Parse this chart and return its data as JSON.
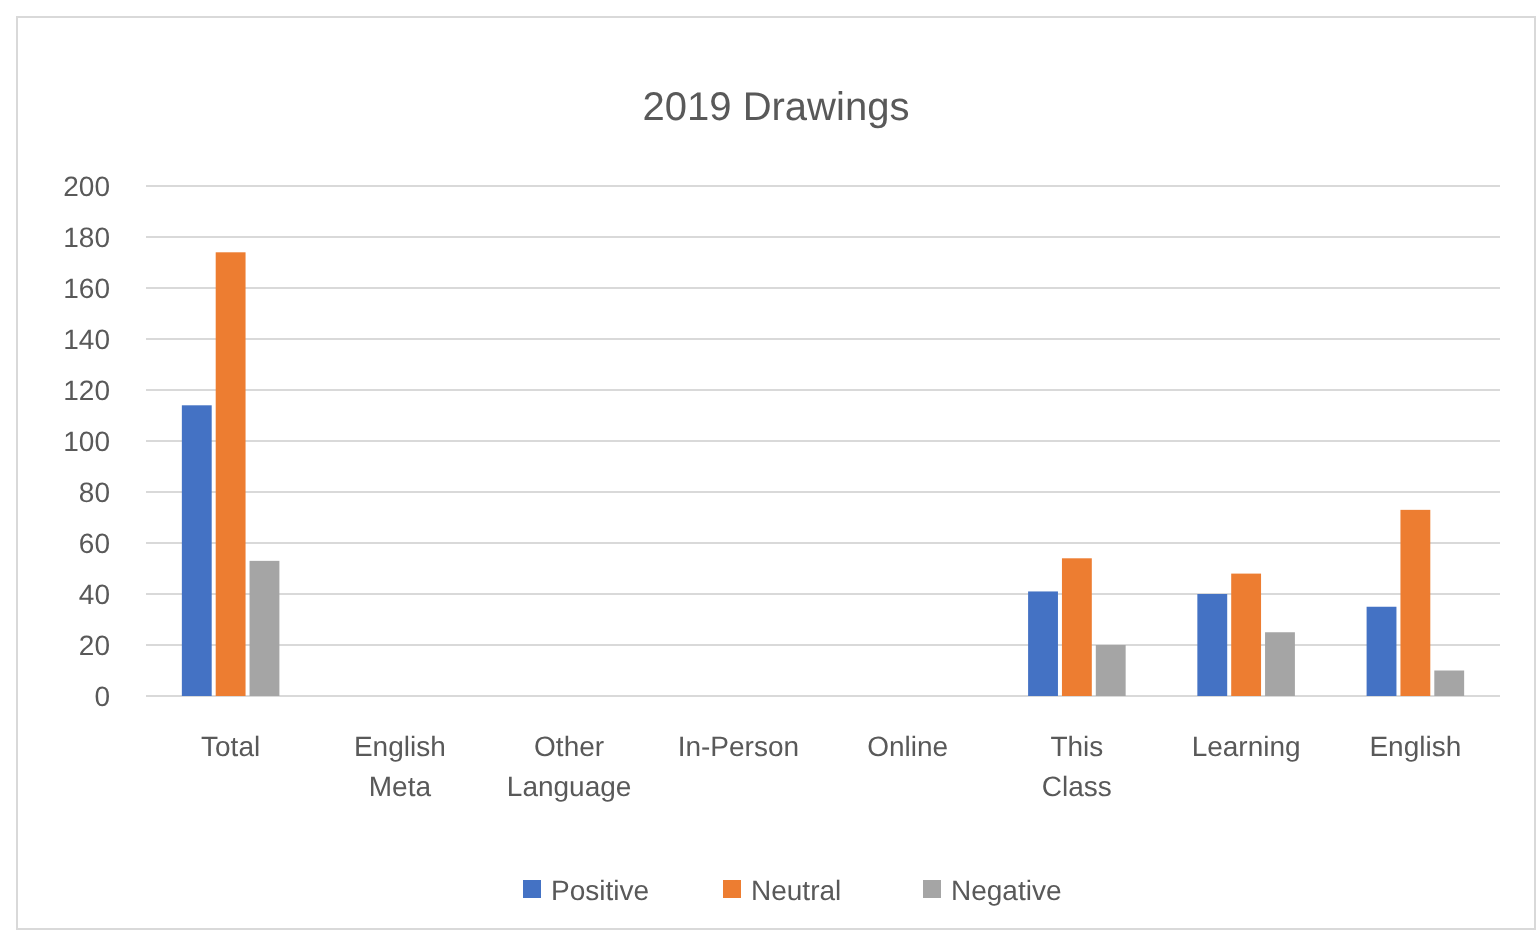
{
  "chart_data": {
    "type": "bar",
    "title": "2019 Drawings",
    "categories": [
      "Total",
      "English Meta",
      "Other Language",
      "In-Person",
      "Online",
      "This Class",
      "Learning",
      "English"
    ],
    "series": [
      {
        "name": "Positive",
        "color": "#4472c4",
        "values": [
          114,
          null,
          null,
          null,
          null,
          41,
          40,
          35
        ]
      },
      {
        "name": "Neutral",
        "color": "#ed7d31",
        "values": [
          174,
          null,
          null,
          null,
          null,
          54,
          48,
          73
        ]
      },
      {
        "name": "Negative",
        "color": "#a5a5a5",
        "values": [
          53,
          null,
          null,
          null,
          null,
          20,
          25,
          10
        ]
      }
    ],
    "ylim": [
      0,
      200
    ],
    "yticks": [
      0,
      20,
      40,
      60,
      80,
      100,
      120,
      140,
      160,
      180,
      200
    ],
    "grid": "y",
    "legend": "bottom"
  }
}
